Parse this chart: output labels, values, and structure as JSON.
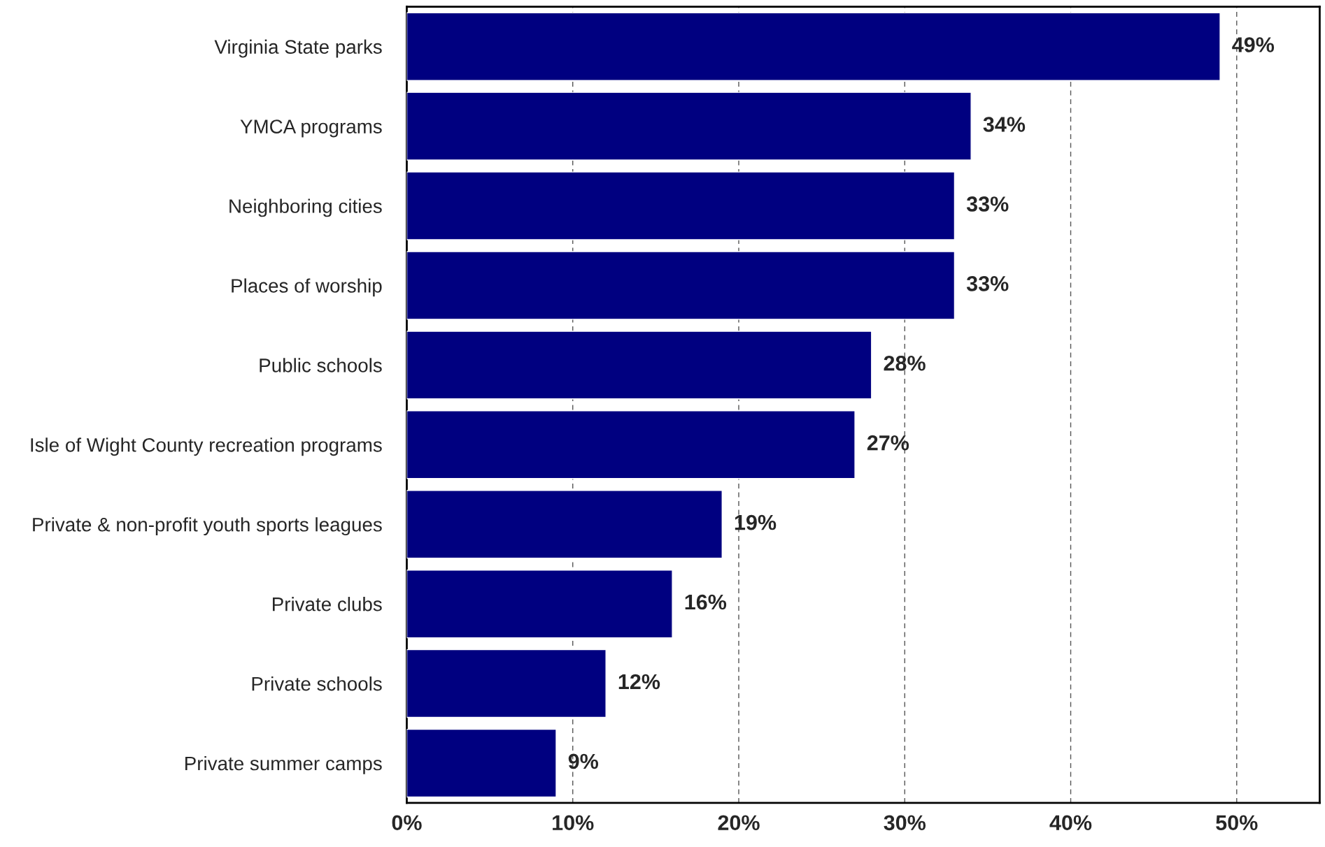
{
  "chart_data": {
    "type": "bar",
    "orientation": "horizontal",
    "categories": [
      "Virginia State parks",
      "YMCA programs",
      "Neighboring cities",
      "Places of worship",
      "Public schools",
      "Isle of Wight County recreation programs",
      "Private & non-profit youth sports leagues",
      "Private clubs",
      "Private schools",
      "Private summer camps"
    ],
    "values": [
      49,
      34,
      33,
      33,
      28,
      27,
      19,
      16,
      12,
      9
    ],
    "value_labels": [
      "49%",
      "34%",
      "33%",
      "33%",
      "28%",
      "27%",
      "19%",
      "16%",
      "12%",
      "9%"
    ],
    "color": "#000080",
    "xlim": [
      0,
      55
    ],
    "xticks": [
      {
        "value": 0,
        "label": "0%"
      },
      {
        "value": 10,
        "label": "10%"
      },
      {
        "value": 20,
        "label": "20%"
      },
      {
        "value": 30,
        "label": "30%"
      },
      {
        "value": 40,
        "label": "40%"
      },
      {
        "value": 50,
        "label": "50%"
      }
    ],
    "grid": "x"
  }
}
